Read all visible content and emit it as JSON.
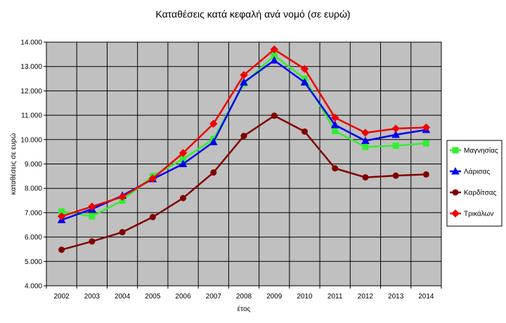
{
  "chart_data": {
    "type": "line",
    "title": "Καταθέσεις κατά κεφαλή ανά νομό (σε ευρώ)",
    "xlabel": "έτος",
    "ylabel": "καταθέσεις σε ευρώ",
    "categories": [
      "2002",
      "2003",
      "2004",
      "2005",
      "2006",
      "2007",
      "2008",
      "2009",
      "2010",
      "2011",
      "2012",
      "2013",
      "2014"
    ],
    "ylim": [
      4000,
      14000
    ],
    "yticks": [
      4000,
      5000,
      6000,
      7000,
      8000,
      9000,
      10000,
      11000,
      12000,
      13000,
      14000
    ],
    "ytick_labels": [
      "4.000",
      "5.000",
      "6.000",
      "7.000",
      "8.000",
      "9.000",
      "10.000",
      "11.000",
      "12.000",
      "13.000",
      "14.000"
    ],
    "grid": true,
    "legend_position": "right",
    "series": [
      {
        "name": "Μαγνησίας",
        "color": "#33ee33",
        "marker": "square",
        "values": [
          7050,
          6850,
          7500,
          8500,
          9200,
          10020,
          12300,
          13450,
          12500,
          10350,
          9700,
          9750,
          9850
        ]
      },
      {
        "name": "Λάρισας",
        "color": "#0000ee",
        "marker": "triangle",
        "values": [
          6700,
          7150,
          7700,
          8380,
          9000,
          9900,
          12350,
          13250,
          12350,
          10600,
          9950,
          10200,
          10400
        ]
      },
      {
        "name": "Καρδίτσας",
        "color": "#800000",
        "marker": "circle",
        "values": [
          5480,
          5820,
          6200,
          6820,
          7600,
          8650,
          10150,
          10980,
          10330,
          8820,
          8450,
          8520,
          8570
        ]
      },
      {
        "name": "Τρικάλων",
        "color": "#ee0000",
        "marker": "diamond",
        "values": [
          6850,
          7250,
          7650,
          8400,
          9450,
          10650,
          12650,
          13700,
          12900,
          10900,
          10280,
          10450,
          10500
        ]
      }
    ]
  }
}
